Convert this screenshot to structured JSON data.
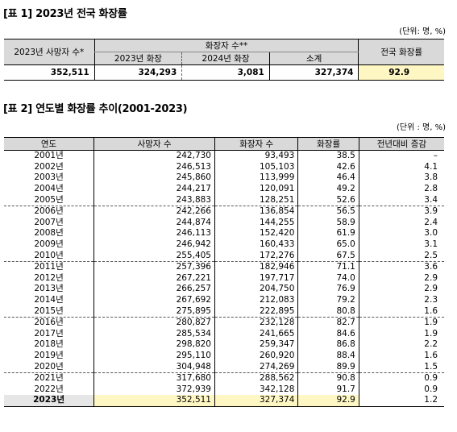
{
  "table1": {
    "title": "[표 1] 2023년 전국 화장률",
    "unit": "(단위: 명, %)",
    "header_deaths": "2023년 사망자 수*",
    "header_cremations": "화장자 수**",
    "header_2023": "2023년 화장",
    "header_2024": "2024년 화장",
    "header_subtotal": "소계",
    "header_rate": "전국 화장률",
    "values": {
      "deaths": "352,511",
      "cremation_2023": "324,293",
      "cremation_2024": "3,081",
      "subtotal": "327,374",
      "rate": "92.9"
    }
  },
  "table2": {
    "title": "[표 2] 연도별 화장률 추이(2001-2023)",
    "unit": "(단위 : 명, %)",
    "headers": [
      "연도",
      "사망자 수",
      "화장자 수",
      "화장률",
      "전년대비 증감"
    ],
    "rows": [
      [
        "2001년",
        "242,730",
        "93,493",
        "38.5",
        "–"
      ],
      [
        "2002년",
        "246,513",
        "105,103",
        "42.6",
        "4.1"
      ],
      [
        "2003년",
        "245,860",
        "113,999",
        "46.4",
        "3.8"
      ],
      [
        "2004년",
        "244,217",
        "120,091",
        "49.2",
        "2.8"
      ],
      [
        "2005년",
        "243,883",
        "128,251",
        "52.6",
        "3.4"
      ],
      [
        "2006년",
        "242,266",
        "136,854",
        "56.5",
        "3.9"
      ],
      [
        "2007년",
        "244,874",
        "144,255",
        "58.9",
        "2.4"
      ],
      [
        "2008년",
        "246,113",
        "152,420",
        "61.9",
        "3.0"
      ],
      [
        "2009년",
        "246,942",
        "160,433",
        "65.0",
        "3.1"
      ],
      [
        "2010년",
        "255,405",
        "172,276",
        "67.5",
        "2.5"
      ],
      [
        "2011년",
        "257,396",
        "182,946",
        "71.1",
        "3.6"
      ],
      [
        "2012년",
        "267,221",
        "197,717",
        "74.0",
        "2.9"
      ],
      [
        "2013년",
        "266,257",
        "204,750",
        "76.9",
        "2.9"
      ],
      [
        "2014년",
        "267,692",
        "212,083",
        "79.2",
        "2.3"
      ],
      [
        "2015년",
        "275,895",
        "222,895",
        "80.8",
        "1.6"
      ],
      [
        "2016년",
        "280,827",
        "232,128",
        "82.7",
        "1.9"
      ],
      [
        "2017년",
        "285,534",
        "241,665",
        "84.6",
        "1.9"
      ],
      [
        "2018년",
        "298,820",
        "259,347",
        "86.8",
        "2.2"
      ],
      [
        "2019년",
        "295,110",
        "260,920",
        "88.4",
        "1.6"
      ],
      [
        "2020년",
        "304,948",
        "274,269",
        "89.9",
        "1.5"
      ],
      [
        "2021년",
        "317,680",
        "288,562",
        "90.8",
        "0.9"
      ],
      [
        "2022년",
        "372,939",
        "342,128",
        "91.7",
        "0.9"
      ],
      [
        "2023년",
        "352,511",
        "327,374",
        "92.9",
        "1.2"
      ]
    ]
  }
}
